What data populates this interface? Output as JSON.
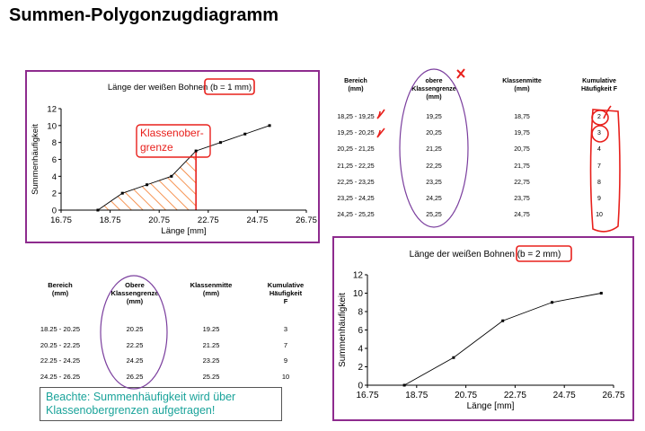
{
  "page": {
    "title": "Summen-Polygonzugdiagramm"
  },
  "chart_data": [
    {
      "type": "line",
      "title": "Länge der weißen Bohnen (b = 1 mm)",
      "xlabel": "Länge [mm]",
      "ylabel": "Summenhäufigkeit",
      "x_ticks": [
        "16.75",
        "18.75",
        "20.75",
        "22.75",
        "24.75",
        "26.75"
      ],
      "y_ticks": [
        "0",
        "2",
        "4",
        "6",
        "8",
        "10",
        "12"
      ],
      "xlim": [
        16.75,
        26.75
      ],
      "ylim": [
        0,
        12
      ],
      "series": [
        {
          "x": [
            18.25,
            19.25,
            20.25,
            21.25,
            22.25,
            23.25,
            24.25,
            25.25
          ],
          "y": [
            0,
            2,
            3,
            4,
            7,
            8,
            9,
            10
          ]
        }
      ],
      "annotation": "Klassenober-\ngrenze",
      "grid": false
    },
    {
      "type": "line",
      "title": "Länge der weißen Bohnen (b = 2 mm)",
      "xlabel": "Länge [mm]",
      "ylabel": "Summenhäufigkeit",
      "x_ticks": [
        "16.75",
        "18.75",
        "20.75",
        "22.75",
        "24.75",
        "26.75"
      ],
      "y_ticks": [
        "0",
        "2",
        "4",
        "6",
        "8",
        "10",
        "12"
      ],
      "xlim": [
        16.75,
        26.75
      ],
      "ylim": [
        0,
        12
      ],
      "series": [
        {
          "x": [
            18.25,
            20.25,
            22.25,
            24.25,
            26.25
          ],
          "y": [
            0,
            3,
            7,
            9,
            10
          ]
        }
      ],
      "grid": false
    }
  ],
  "table1": {
    "headers": [
      "Bereich\n(mm)",
      "obere\nKlassengrenze\n(mm)",
      "Klassenmitte\n(mm)",
      "Kumulative\nHäufigkeit F"
    ],
    "rows": [
      [
        "18,25 - 19,25",
        "19,25",
        "18,75",
        "2"
      ],
      [
        "19,25 - 20,25",
        "20,25",
        "19,75",
        "3"
      ],
      [
        "20,25 - 21,25",
        "21,25",
        "20,75",
        "4"
      ],
      [
        "21,25 - 22,25",
        "22,25",
        "21,75",
        "7"
      ],
      [
        "22,25 - 23,25",
        "23,25",
        "22,75",
        "8"
      ],
      [
        "23,25 - 24,25",
        "24,25",
        "23,75",
        "9"
      ],
      [
        "24,25 - 25,25",
        "25,25",
        "24,75",
        "10"
      ]
    ]
  },
  "table2": {
    "headers": [
      "Bereich\n(mm)",
      "Obere\nKlassengrenze\n(mm)",
      "Klassenmitte\n(mm)",
      "Kumulative\nHäufigkeit\nF"
    ],
    "rows": [
      [
        "18.25 - 20.25",
        "20.25",
        "19.25",
        "3"
      ],
      [
        "20.25 - 22.25",
        "22.25",
        "21.25",
        "7"
      ],
      [
        "22.25 - 24.25",
        "24.25",
        "23.25",
        "9"
      ],
      [
        "24.25 - 26.25",
        "26.25",
        "25.25",
        "10"
      ]
    ]
  },
  "note": {
    "text": "Beachte: Summenhäufigkeit wird über Klassenobergrenzen aufgetragen!"
  },
  "colors": {
    "frame": "#8e2b8e",
    "annotation_red": "#e8201c",
    "hatch": "#f47a2a",
    "note_text": "#1aa39a",
    "ellipse": "#7b3f9e"
  }
}
